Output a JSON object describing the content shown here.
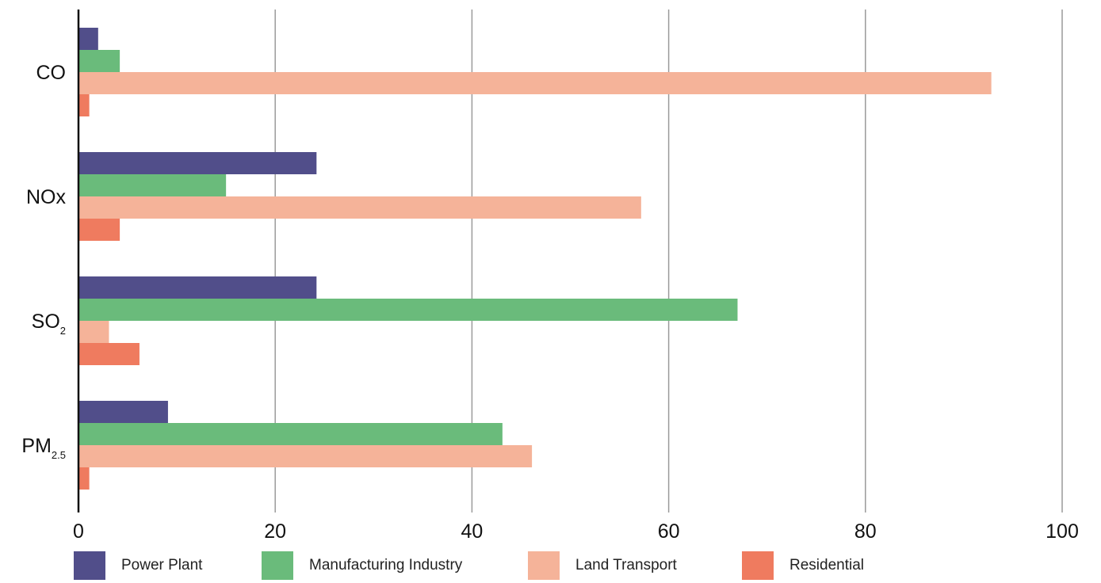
{
  "chart_data": {
    "type": "bar",
    "orientation": "horizontal",
    "categories": [
      {
        "main": "CO",
        "sub": ""
      },
      {
        "main": "NOx",
        "sub": ""
      },
      {
        "main": "SO",
        "sub": "2"
      },
      {
        "main": "PM",
        "sub": "2.5"
      }
    ],
    "series": [
      {
        "name": "Power Plant",
        "color": "#514e8a",
        "values": [
          2.0,
          24.2,
          24.2,
          9.1
        ]
      },
      {
        "name": "Manufacturing Industry",
        "color": "#6abb7b",
        "values": [
          4.2,
          15.0,
          67.0,
          43.1
        ]
      },
      {
        "name": "Land Transport",
        "color": "#f5b399",
        "values": [
          92.8,
          57.2,
          3.1,
          46.1
        ]
      },
      {
        "name": "Residential",
        "color": "#ef7b5f",
        "values": [
          1.1,
          4.2,
          6.2,
          1.1
        ]
      }
    ],
    "xlim": [
      0,
      100
    ],
    "x_ticks": [
      0,
      20,
      40,
      60,
      80,
      100
    ],
    "grid": true,
    "legend_position": "bottom"
  }
}
